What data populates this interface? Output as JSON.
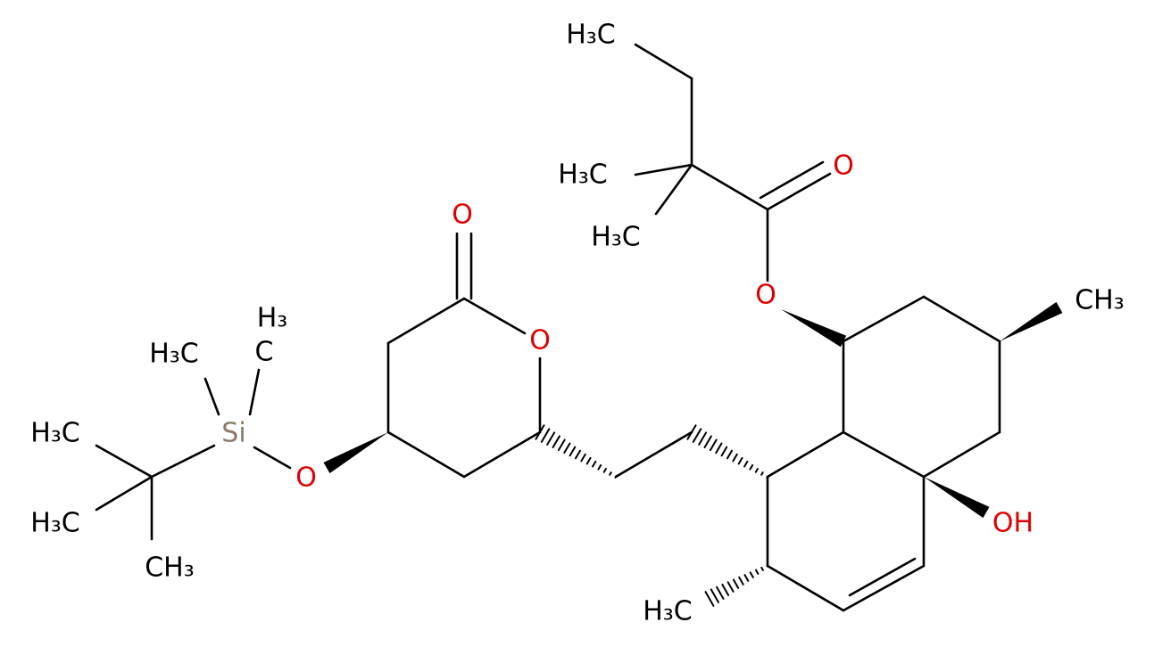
{
  "atoms": [
    {
      "label": "H₃C"
    },
    {
      "label": "H₃C"
    },
    {
      "label": "H₃C"
    },
    {
      "label": "O"
    },
    {
      "label": "O"
    },
    {
      "label": "CH₃"
    },
    {
      "label": "OH"
    },
    {
      "label": "H₃C"
    },
    {
      "label": "O"
    },
    {
      "label": "O"
    },
    {
      "label": "O"
    },
    {
      "label": "Si"
    },
    {
      "label": "H₃C"
    },
    {
      "label": "C"
    },
    {
      "label": "H₃"
    },
    {
      "label": "H₃C"
    },
    {
      "label": "H₃C"
    },
    {
      "label": "CH₃"
    }
  ]
}
